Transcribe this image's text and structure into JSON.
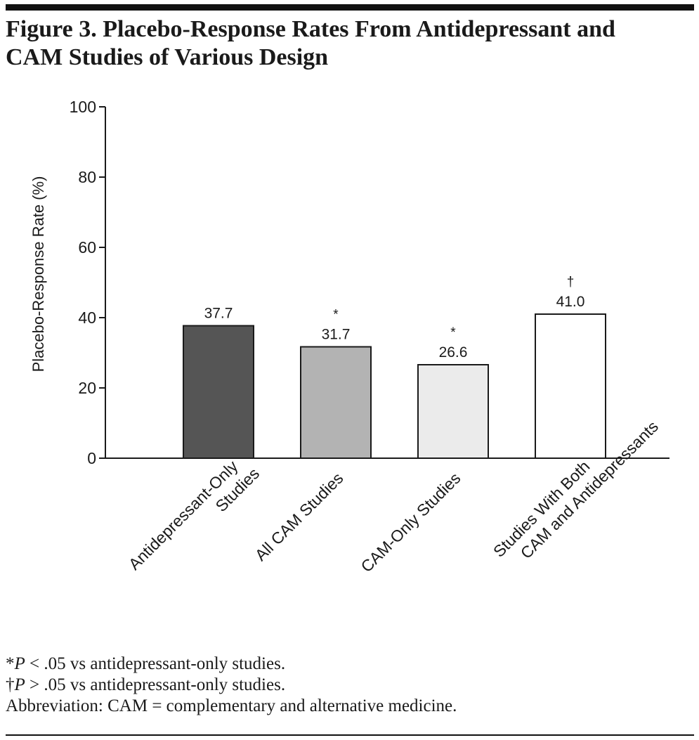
{
  "figure": {
    "title_line1": "Figure 3. Placebo-Response Rates From Antidepressant and",
    "title_line2": "CAM Studies of Various Design"
  },
  "chart_data": {
    "type": "bar",
    "title": "Figure 3. Placebo-Response Rates From Antidepressant and CAM Studies of Various Design",
    "xlabel": "",
    "ylabel": "Placebo-Response Rate (%)",
    "ylim": [
      0,
      100
    ],
    "yticks": [
      0,
      20,
      40,
      60,
      80,
      100
    ],
    "grid": false,
    "categories": [
      "Antidepressant-Only Studies",
      "All CAM Studies",
      "CAM-Only Studies",
      "Studies With Both CAM and Antidepressants"
    ],
    "category_label_lines": [
      [
        "Antidepressant-Only",
        "Studies"
      ],
      [
        "All CAM Studies"
      ],
      [
        "CAM-Only Studies"
      ],
      [
        "Studies With Both",
        "CAM and Antidepressants"
      ]
    ],
    "values": [
      37.7,
      31.7,
      26.6,
      41.0
    ],
    "value_labels": [
      "37.7",
      "31.7",
      "26.6",
      "41.0"
    ],
    "annotations": [
      "",
      "*",
      "*",
      "†"
    ],
    "bar_colors": [
      "#555555",
      "#b3b3b3",
      "#ebebeb",
      "#ffffff"
    ]
  },
  "footnotes": {
    "note1_symbol": "*",
    "note1_p": "P",
    "note1_text": " < .05 vs antidepressant-only studies.",
    "note2_symbol": "†",
    "note2_p": "P",
    "note2_text": " > .05 vs antidepressant-only studies.",
    "abbreviation": "Abbreviation: CAM = complementary and alternative medicine."
  }
}
